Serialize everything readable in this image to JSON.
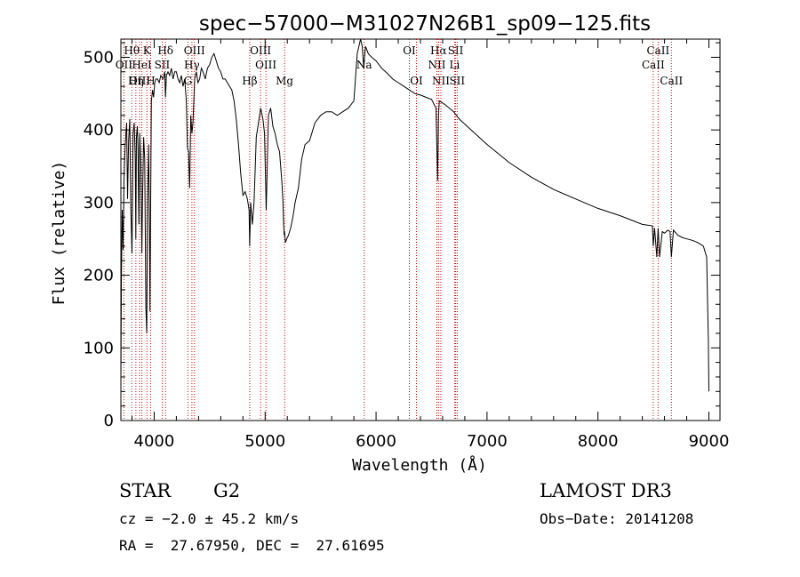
{
  "chart_data": {
    "type": "line",
    "title": "spec−57000−M31027N26B1_sp09−125.fits",
    "xlabel": "Wavelength (Å)",
    "ylabel": "Flux (relative)",
    "xlim": [
      3700,
      9100
    ],
    "ylim": [
      0,
      525
    ],
    "xticks": [
      4000,
      5000,
      6000,
      7000,
      8000,
      9000
    ],
    "yticks": [
      0,
      100,
      200,
      300,
      400,
      500
    ],
    "series": [
      {
        "name": "flux",
        "x": [
          3700,
          3705,
          3712,
          3720,
          3728,
          3735,
          3745,
          3752,
          3760,
          3770,
          3780,
          3790,
          3800,
          3810,
          3820,
          3830,
          3835,
          3840,
          3848,
          3855,
          3862,
          3870,
          3880,
          3889,
          3895,
          3905,
          3915,
          3925,
          3933,
          3940,
          3950,
          3958,
          3962,
          3968,
          3975,
          3985,
          3995,
          4005,
          4015,
          4030,
          4045,
          4060,
          4080,
          4095,
          4102,
          4110,
          4125,
          4140,
          4155,
          4170,
          4185,
          4200,
          4215,
          4230,
          4245,
          4260,
          4275,
          4290,
          4300,
          4310,
          4320,
          4330,
          4340,
          4350,
          4365,
          4380,
          4395,
          4410,
          4425,
          4440,
          4460,
          4480,
          4500,
          4520,
          4540,
          4560,
          4580,
          4600,
          4620,
          4640,
          4660,
          4680,
          4700,
          4720,
          4740,
          4760,
          4780,
          4800,
          4820,
          4840,
          4855,
          4861,
          4870,
          4885,
          4900,
          4920,
          4940,
          4960,
          4980,
          4995,
          5010,
          5030,
          5050,
          5070,
          5090,
          5110,
          5130,
          5150,
          5160,
          5167,
          5172,
          5175,
          5183,
          5195,
          5210,
          5230,
          5250,
          5270,
          5300,
          5330,
          5360,
          5400,
          5450,
          5500,
          5550,
          5600,
          5650,
          5700,
          5750,
          5800,
          5830,
          5860,
          5875,
          5890,
          5896,
          5905,
          5930,
          5960,
          6000,
          6050,
          6100,
          6150,
          6200,
          6250,
          6300,
          6350,
          6400,
          6450,
          6500,
          6540,
          6555,
          6563,
          6570,
          6590,
          6620,
          6660,
          6700,
          6750,
          6800,
          7000,
          7200,
          7400,
          7600,
          7800,
          8000,
          8200,
          8400,
          8490,
          8498,
          8510,
          8530,
          8542,
          8555,
          8580,
          8600,
          8630,
          8650,
          8662,
          8680,
          8720,
          8760,
          8800,
          8850,
          8900,
          8950,
          8980,
          8995,
          9000
        ],
        "values": [
          60,
          200,
          290,
          235,
          330,
          365,
          395,
          410,
          305,
          385,
          415,
          290,
          230,
          395,
          410,
          360,
          250,
          390,
          405,
          375,
          270,
          395,
          350,
          230,
          300,
          390,
          360,
          155,
          120,
          300,
          380,
          260,
          150,
          300,
          440,
          455,
          445,
          465,
          470,
          470,
          465,
          475,
          470,
          480,
          445,
          475,
          480,
          475,
          485,
          470,
          480,
          480,
          470,
          465,
          475,
          460,
          470,
          440,
          375,
          370,
          320,
          420,
          395,
          410,
          470,
          480,
          465,
          470,
          485,
          480,
          470,
          485,
          490,
          500,
          505,
          495,
          485,
          480,
          470,
          470,
          465,
          460,
          455,
          440,
          415,
          380,
          340,
          310,
          315,
          305,
          290,
          240,
          300,
          270,
          300,
          390,
          410,
          430,
          415,
          395,
          290,
          420,
          430,
          405,
          395,
          380,
          370,
          330,
          305,
          270,
          255,
          260,
          245,
          250,
          255,
          265,
          280,
          300,
          320,
          360,
          380,
          385,
          410,
          420,
          425,
          425,
          420,
          425,
          430,
          440,
          505,
          525,
          515,
          485,
          500,
          515,
          505,
          500,
          495,
          485,
          478,
          470,
          465,
          460,
          455,
          450,
          448,
          445,
          442,
          430,
          330,
          420,
          440,
          438,
          435,
          430,
          425,
          415,
          408,
          380,
          355,
          335,
          318,
          305,
          292,
          282,
          270,
          268,
          240,
          265,
          225,
          265,
          225,
          260,
          258,
          262,
          260,
          225,
          262,
          255,
          252,
          250,
          248,
          245,
          240,
          225,
          110,
          40
        ]
      }
    ],
    "spectral_lines": [
      {
        "label": "Hθ",
        "x": 3798,
        "row": 0
      },
      {
        "label": "OII",
        "x": 3727,
        "row": 1
      },
      {
        "label": "OIII",
        "x": 3869,
        "row": 2
      },
      {
        "label": "K",
        "x": 3934,
        "row": 0
      },
      {
        "label": "HeI",
        "x": 3889,
        "row": 1
      },
      {
        "label": "Hη",
        "x": 3835,
        "row": 2
      },
      {
        "label": "SII",
        "x": 4072,
        "row": 1
      },
      {
        "label": "H",
        "x": 3968,
        "row": 2
      },
      {
        "label": "Hδ",
        "x": 4102,
        "row": 0
      },
      {
        "label": "OIII",
        "x": 4363,
        "row": 0
      },
      {
        "label": "Hγ",
        "x": 4340,
        "row": 1
      },
      {
        "label": "G",
        "x": 4305,
        "row": 2
      },
      {
        "label": "Hβ",
        "x": 4861,
        "row": 2
      },
      {
        "label": "OIII",
        "x": 4959,
        "row": 0
      },
      {
        "label": "OIII",
        "x": 5007,
        "row": 1
      },
      {
        "label": "Mg",
        "x": 5175,
        "row": 2
      },
      {
        "label": "Na",
        "x": 5893,
        "row": 1
      },
      {
        "label": "OI",
        "x": 6300,
        "row": 0
      },
      {
        "label": "OI",
        "x": 6364,
        "row": 2
      },
      {
        "label": "Hα",
        "x": 6563,
        "row": 0
      },
      {
        "label": "NII",
        "x": 6548,
        "row": 1
      },
      {
        "label": "NII",
        "x": 6584,
        "row": 2
      },
      {
        "label": "SII",
        "x": 6717,
        "row": 0
      },
      {
        "label": "Li",
        "x": 6708,
        "row": 1
      },
      {
        "label": "SII",
        "x": 6731,
        "row": 2
      },
      {
        "label": "CaII",
        "x": 8542,
        "row": 0
      },
      {
        "label": "CaII",
        "x": 8498,
        "row": 1
      },
      {
        "label": "CaII",
        "x": 8662,
        "row": 2
      }
    ]
  },
  "info": {
    "object_class": "STAR",
    "subclass": "G2",
    "survey": "LAMOST DR3",
    "redshift_text": "cz = −2.0 ± 45.2 km/s",
    "obs_date_text": "Obs−Date: 20141208",
    "coords_text": "RA =  27.67950, DEC =  27.61695"
  },
  "colors": {
    "spectrum": "#000000",
    "line_markers": "#cc0000",
    "axes": "#000000",
    "background": "#ffffff"
  }
}
